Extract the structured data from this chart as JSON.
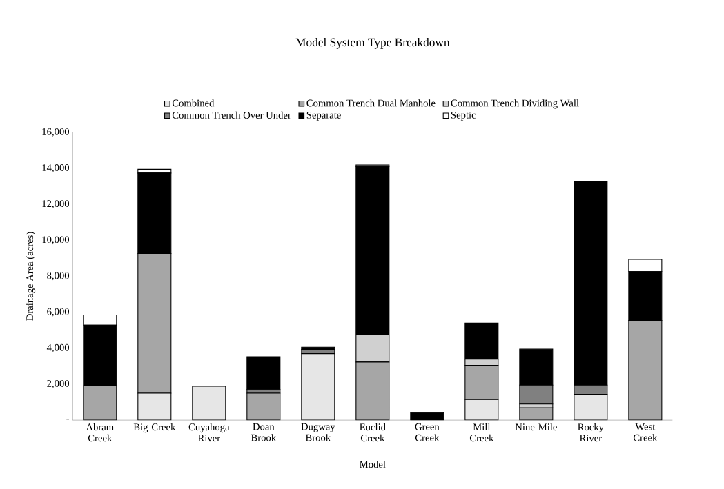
{
  "chart_data": {
    "type": "bar",
    "stacked": true,
    "title": "Model System Type Breakdown",
    "xlabel": "Model",
    "ylabel": "Drainage Area (acres)",
    "categories": [
      "Abram Creek",
      "Big Creek",
      "Cuyahoga River",
      "Doan Brook",
      "Dugway Brook",
      "Euclid Creek",
      "Green Creek",
      "Mill Creek",
      "Nine Mile",
      "Rocky River",
      "West Creek"
    ],
    "series": [
      {
        "name": "Combined",
        "color": "#e6e6e6",
        "values": [
          null,
          1500,
          1890,
          null,
          3700,
          null,
          null,
          1150,
          null,
          1440,
          null
        ]
      },
      {
        "name": "Common Trench Dual Manhole",
        "color": "#a6a6a6",
        "values": [
          1910,
          7770,
          null,
          1500,
          null,
          3230,
          null,
          1900,
          680,
          null,
          5550
        ]
      },
      {
        "name": "Common Trench Dividing Wall",
        "color": "#d0d0d0",
        "values": [
          null,
          null,
          null,
          null,
          null,
          1510,
          null,
          340,
          220,
          null,
          null
        ]
      },
      {
        "name": "Common Trench Over Under",
        "color": "#808080",
        "values": [
          null,
          null,
          null,
          200,
          230,
          null,
          null,
          null,
          1050,
          510,
          null
        ]
      },
      {
        "name": "Separate",
        "color": "#000000",
        "values": [
          3380,
          4470,
          null,
          1830,
          130,
          9370,
          420,
          2010,
          2000,
          11320,
          2710
        ]
      },
      {
        "name": "Septic",
        "color": "#ffffff",
        "values": [
          560,
          210,
          null,
          null,
          null,
          80,
          null,
          null,
          null,
          null,
          680
        ]
      }
    ],
    "ylim": [
      0,
      16000
    ],
    "yticks": [
      {
        "value": 0,
        "label": "-"
      },
      {
        "value": 2000,
        "label": "2,000"
      },
      {
        "value": 4000,
        "label": "4,000"
      },
      {
        "value": 6000,
        "label": "6,000"
      },
      {
        "value": 8000,
        "label": "8,000"
      },
      {
        "value": 10000,
        "label": "10,000"
      },
      {
        "value": 12000,
        "label": "12,000"
      },
      {
        "value": 14000,
        "label": "14,000"
      },
      {
        "value": 16000,
        "label": "16,000"
      }
    ],
    "grid": false,
    "legend": "top"
  }
}
